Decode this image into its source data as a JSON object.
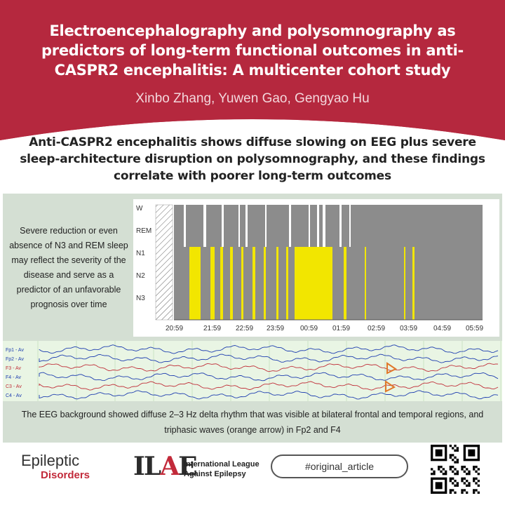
{
  "header": {
    "title": "Electroencephalography and polysomnography as predictors of long-term functional outcomes in anti-CASPR2 encephalitis: A multicenter cohort study",
    "authors": "Xinbo Zhang, Yuwen Gao, Gengyao Hu"
  },
  "subtitle": "Anti-CASPR2 encephalitis shows diffuse slowing on EEG plus severe sleep-architecture disruption on polysomnography, and these findings correlate with poorer long-term outcomes",
  "note": "Severe reduction or even absence of N3 and REM sleep may reflect the severity of the disease and serve as a predictor of an unfavorable prognosis over time",
  "hypnogram": {
    "stage_labels": [
      "W",
      "REM",
      "N1",
      "N2",
      "N3"
    ],
    "time_labels": [
      "20:59",
      "21:59",
      "22:59",
      "23:59",
      "00:59",
      "01:59",
      "02:59",
      "03:59",
      "04:59",
      "05:59"
    ]
  },
  "eeg": {
    "channels": [
      "Fp1 - Av",
      "Fp2 - Av",
      "F3 - Av",
      "F4 - Av",
      "C3 - Av",
      "C4 - Av"
    ]
  },
  "caption": "The EEG background showed diffuse 2–3 Hz delta rhythm that was visible at bilateral frontal and temporal regions, and triphasic waves (orange arrow) in Fp2 and F4",
  "footer": {
    "journal_top": "Epileptic",
    "journal_bottom": "Disorders",
    "ilae_line1": "International League",
    "ilae_line2": "Against Epilepsy",
    "hashtag": "#original_article"
  },
  "colors": {
    "header_bg": "#b5283e",
    "panel_bg": "#d4dfd3",
    "hypno_gray": "#8c8c8c",
    "hypno_yellow": "#f2e600",
    "arrow": "#e0782a"
  }
}
